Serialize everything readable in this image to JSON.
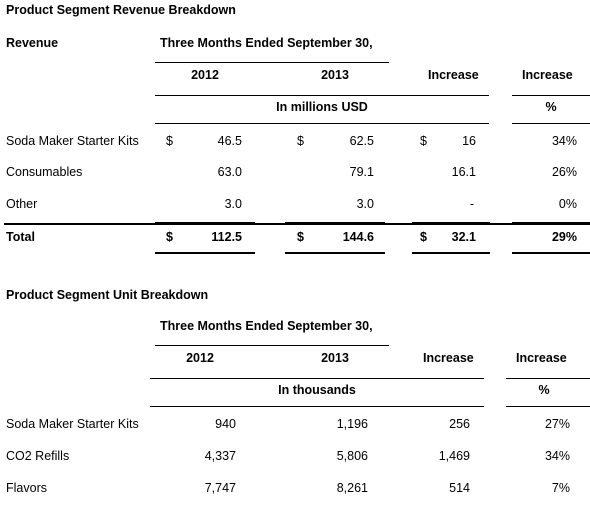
{
  "revenue": {
    "section_title": "Product Segment Revenue Breakdown",
    "row_header": "Revenue",
    "period_header": "Three Months Ended September 30,",
    "col_2012": "2012",
    "col_2013": "2013",
    "col_increase": "Increase",
    "col_increase_pct": "Increase",
    "unit_label": "In millions USD",
    "pct_label": "%",
    "currency": "$",
    "rows": [
      {
        "label": "Soda Maker Starter Kits",
        "v2012": "46.5",
        "v2013": "62.5",
        "inc": "16",
        "pct": "34%"
      },
      {
        "label": "Consumables",
        "v2012": "63.0",
        "v2013": "79.1",
        "inc": "16.1",
        "pct": "26%"
      },
      {
        "label": "Other",
        "v2012": "3.0",
        "v2013": "3.0",
        "inc": "-",
        "pct": "0%"
      }
    ],
    "total": {
      "label": "Total",
      "v2012": "112.5",
      "v2013": "144.6",
      "inc": "32.1",
      "pct": "29%"
    }
  },
  "units": {
    "section_title": "Product Segment Unit Breakdown",
    "period_header": "Three Months Ended September 30,",
    "col_2012": "2012",
    "col_2013": "2013",
    "col_increase": "Increase",
    "col_increase_pct": "Increase",
    "unit_label": "In thousands",
    "pct_label": "%",
    "rows": [
      {
        "label": "Soda Maker Starter Kits",
        "v2012": "940",
        "v2013": "1,196",
        "inc": "256",
        "pct": "27%"
      },
      {
        "label": "CO2 Refills",
        "v2012": "4,337",
        "v2013": "5,806",
        "inc": "1,469",
        "pct": "34%"
      },
      {
        "label": "Flavors",
        "v2012": "7,747",
        "v2013": "8,261",
        "inc": "514",
        "pct": "7%"
      }
    ]
  }
}
